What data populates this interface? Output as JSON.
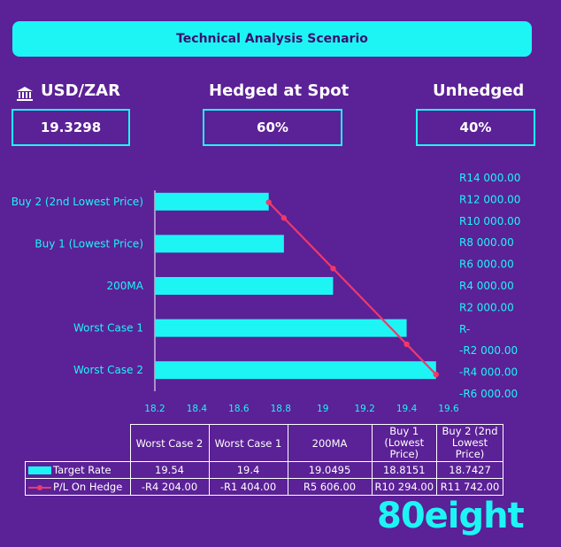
{
  "header": {
    "title": "Technical Analysis Scenario"
  },
  "kpis": {
    "pair_label": "USD/ZAR",
    "pair_value": "19.3298",
    "hedged_label": "Hedged at Spot",
    "hedged_value": "60%",
    "unhedged_label": "Unhedged",
    "unhedged_value": "40%"
  },
  "colors": {
    "background": "#5B2196",
    "accent": "#1DF5F5",
    "line": "#F0386B"
  },
  "chart_data": {
    "type": "bar",
    "orientation": "horizontal",
    "categories": [
      "Worst Case 2",
      "Worst Case 1",
      "200MA",
      "Buy 1 (Lowest Price)",
      "Buy 2 (2nd Lowest Price)"
    ],
    "series": [
      {
        "name": "Target Rate",
        "type": "bar",
        "values": [
          19.54,
          19.4,
          19.0495,
          18.8151,
          18.7427
        ]
      },
      {
        "name": "P/L On Hedge",
        "type": "line",
        "values": [
          -4204,
          -1404,
          5606,
          10294,
          11742
        ]
      }
    ],
    "xlim": [
      18.2,
      19.6
    ],
    "xticks": [
      "18.2",
      "18.4",
      "18.6",
      "18.8",
      "19",
      "19.2",
      "19.4",
      "19.6"
    ],
    "secondary_ylim": [
      -6000,
      14000
    ],
    "secondary_yticks": [
      "R14 000.00",
      "R12 000.00",
      "R10 000.00",
      "R8 000.00",
      "R6 000.00",
      "R4 000.00",
      "R2 000.00",
      "R-",
      "-R2 000.00",
      "-R4 000.00",
      "-R6 000.00"
    ],
    "table": {
      "columns": [
        "Worst Case 2",
        "Worst Case 1",
        "200MA",
        "Buy 1 (Lowest Price)",
        "Buy 2 (2nd Lowest Price)"
      ],
      "rows": [
        {
          "label": "Target Rate",
          "cells": [
            "19.54",
            "19.4",
            "19.0495",
            "18.8151",
            "18.7427"
          ]
        },
        {
          "label": "P/L On Hedge",
          "cells": [
            "-R4 204.00",
            "-R1 404.00",
            "R5 606.00",
            "R10 294.00",
            "R11 742.00"
          ]
        }
      ]
    }
  },
  "logo": {
    "text": "80eight"
  }
}
